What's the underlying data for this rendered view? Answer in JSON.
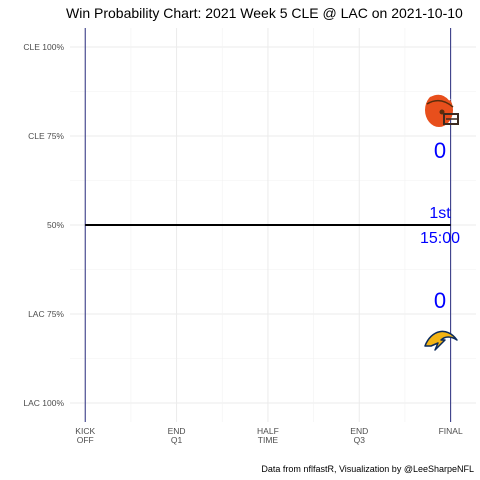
{
  "chart_data": {
    "type": "line",
    "title": "Win Probability Chart: 2021 Week 5 CLE @ LAC on 2021-10-10",
    "y_ticks": [
      {
        "label": "CLE 100%",
        "value": 1.0
      },
      {
        "label": "CLE 75%",
        "value": 0.75
      },
      {
        "label": "50%",
        "value": 0.5
      },
      {
        "label": "LAC 75%",
        "value": 0.25
      },
      {
        "label": "LAC 100%",
        "value": 0.0
      }
    ],
    "x_ticks": [
      {
        "label": [
          "KICK",
          "OFF"
        ],
        "value": 0
      },
      {
        "label": [
          "END",
          "Q1"
        ],
        "value": 900
      },
      {
        "label": [
          "HALF",
          "TIME"
        ],
        "value": 1800
      },
      {
        "label": [
          "END",
          "Q3"
        ],
        "value": 2700
      },
      {
        "label": [
          "FINAL"
        ],
        "value": 3600
      }
    ],
    "xlim": [
      -150,
      3850
    ],
    "ylim": [
      0,
      1
    ],
    "series": [
      {
        "x": [
          0,
          3600
        ],
        "y": [
          0.5,
          0.5
        ],
        "color": "#000000"
      }
    ],
    "vertical_lines": [
      0,
      3600
    ],
    "vline_color": "#2a2e7f",
    "grid": true,
    "annotations": {
      "away_team": "CLE",
      "home_team": "LAC",
      "away_score": "0",
      "home_score": "0",
      "quarter": "1st",
      "clock": "15:00",
      "text_color": "#0000ff",
      "away_logo": "browns-helmet-icon",
      "home_logo": "chargers-bolt-icon"
    },
    "caption": "Data from nflfastR, Visualization by @LeeSharpeNFL"
  }
}
